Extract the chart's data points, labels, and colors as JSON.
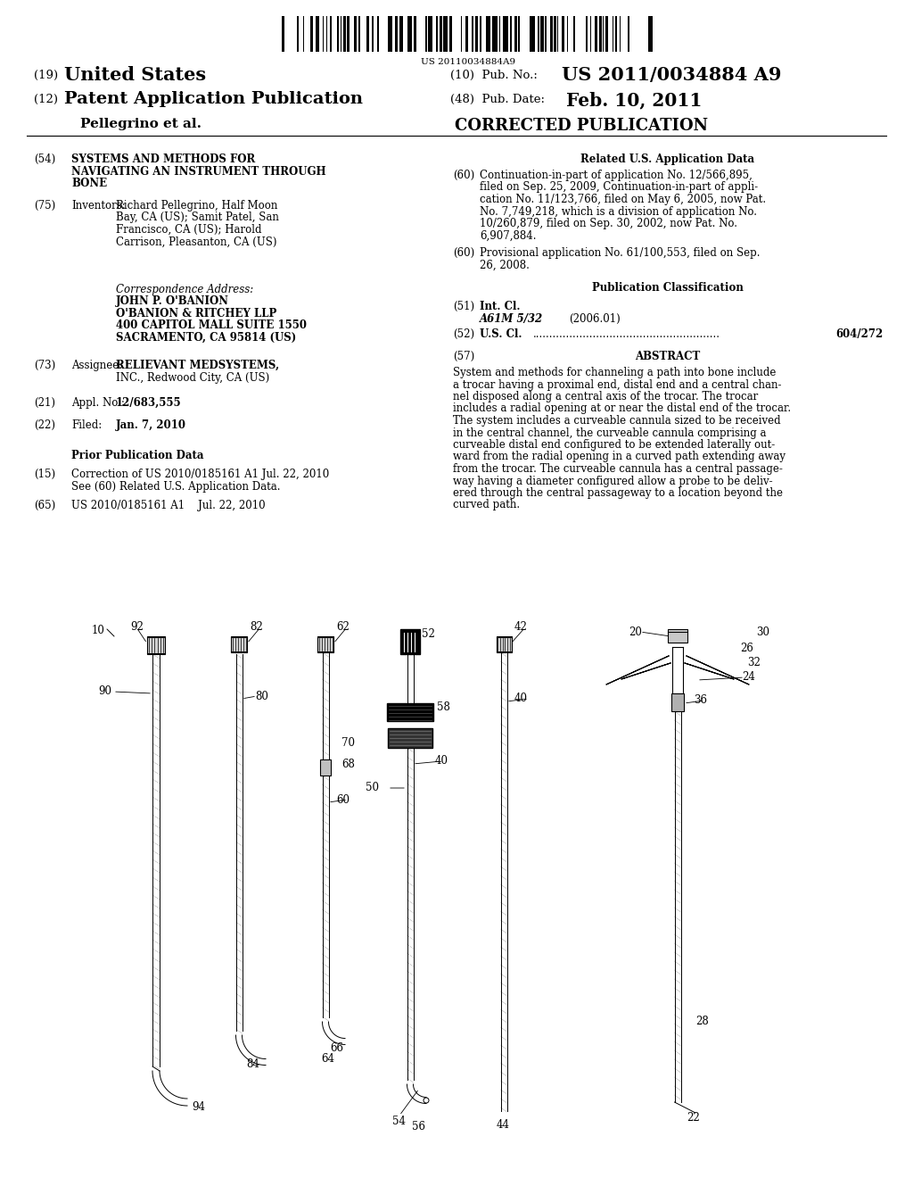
{
  "bg_color": "#ffffff",
  "barcode_text": "US 20110034884A9",
  "pub_no_label": "(10)  Pub. No.:",
  "pub_no_value": "US 2011/0034884 A9",
  "pub_date_label": "(48)  Pub. Date:",
  "pub_date_value": "Feb. 10, 2011",
  "country_num": "(19)",
  "country_name": "United States",
  "type_num": "(12)",
  "type_name": "Patent Application Publication",
  "inventor_line": "Pellegrino et al.",
  "corrected": "CORRECTED PUBLICATION",
  "section54_num": "(54)",
  "section54_title": "SYSTEMS AND METHODS FOR\nNAVIGATING AN INSTRUMENT THROUGH\nBONE",
  "section75_num": "(75)",
  "section75_label": "Inventors:",
  "section75_text": "Richard Pellegrino, Half Moon\nBay, CA (US); Samit Patel, San\nFrancisco, CA (US); Harold\nCarrison, Pleasanton, CA (US)",
  "corr_addr_label": "Correspondence Address:",
  "corr_addr_line1": "JOHN P. O'BANION",
  "corr_addr_line2": "O'BANION & RITCHEY LLP",
  "corr_addr_line3": "400 CAPITOL MALL SUITE 1550",
  "corr_addr_line4": "SACRAMENTO, CA 95814 (US)",
  "section73_num": "(73)",
  "section73_label": "Assignee:",
  "section73_line1": "RELIEVANT MEDSYSTEMS,",
  "section73_line2": "INC., Redwood City, CA (US)",
  "section21_num": "(21)",
  "section21_label": "Appl. No.:",
  "section21_value": "12/683,555",
  "section22_num": "(22)",
  "section22_label": "Filed:",
  "section22_value": "Jan. 7, 2010",
  "prior_pub_header": "Prior Publication Data",
  "section15_num": "(15)",
  "section15_line1": "Correction of US 2010/0185161 A1 Jul. 22, 2010",
  "section15_line2": "See (60) Related U.S. Application Data.",
  "section65_num": "(65)",
  "section65_text": "US 2010/0185161 A1    Jul. 22, 2010",
  "related_header": "Related U.S. Application Data",
  "section60a_num": "(60)",
  "section60a_text": "Continuation-in-part of application No. 12/566,895,\nfiled on Sep. 25, 2009, Continuation-in-part of appli-\ncation No. 11/123,766, filed on May 6, 2005, now Pat.\nNo. 7,749,218, which is a division of application No.\n10/260,879, filed on Sep. 30, 2002, now Pat. No.\n6,907,884.",
  "section60b_num": "(60)",
  "section60b_text": "Provisional application No. 61/100,553, filed on Sep.\n26, 2008.",
  "pub_class_header": "Publication Classification",
  "section51_num": "(51)",
  "section51_label": "Int. Cl.",
  "section51_value": "A61M 5/32",
  "section51_year": "(2006.01)",
  "section52_num": "(52)",
  "section52_label": "U.S. Cl.",
  "section52_dots": "........................................................",
  "section52_value": "604/272",
  "section57_num": "(57)",
  "section57_header": "ABSTRACT",
  "abstract_text": "System and methods for channeling a path into bone include\na trocar having a proximal end, distal end and a central chan-\nnel disposed along a central axis of the trocar. The trocar\nincludes a radial opening at or near the distal end of the trocar.\nThe system includes a curveable cannula sized to be received\nin the central channel, the curveable cannula comprising a\ncurveable distal end configured to be extended laterally out-\nward from the radial opening in a curved path extending away\nfrom the trocar. The curveable cannula has a central passage-\nway having a diameter configured allow a probe to be deliv-\nered through the central passageway to a location beyond the\ncurved path."
}
